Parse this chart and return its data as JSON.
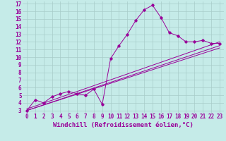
{
  "xlabel": "Windchill (Refroidissement éolien,°C)",
  "background_color": "#c5ebe8",
  "grid_color": "#a8ccc9",
  "line_color": "#990099",
  "xlim": [
    -0.5,
    23.5
  ],
  "ylim": [
    2.7,
    17.3
  ],
  "xticks": [
    0,
    1,
    2,
    3,
    4,
    5,
    6,
    7,
    8,
    9,
    10,
    11,
    12,
    13,
    14,
    15,
    16,
    17,
    18,
    19,
    20,
    21,
    22,
    23
  ],
  "yticks": [
    3,
    4,
    5,
    6,
    7,
    8,
    9,
    10,
    11,
    12,
    13,
    14,
    15,
    16,
    17
  ],
  "line1_x": [
    0,
    1,
    2,
    3,
    4,
    5,
    6,
    7,
    8,
    9,
    10,
    11,
    12,
    13,
    14,
    15,
    16,
    17,
    18,
    19,
    20,
    21,
    22,
    23
  ],
  "line1_y": [
    3.0,
    4.4,
    4.0,
    4.8,
    5.2,
    5.5,
    5.2,
    5.0,
    5.8,
    3.8,
    9.8,
    11.5,
    13.0,
    14.8,
    16.2,
    16.8,
    15.2,
    13.2,
    12.8,
    12.0,
    12.0,
    12.2,
    11.8,
    11.8
  ],
  "line2_x": [
    0,
    23
  ],
  "line2_y": [
    3.2,
    12.0
  ],
  "line3_x": [
    0,
    23
  ],
  "line3_y": [
    3.0,
    11.5
  ],
  "line4_x": [
    0,
    23
  ],
  "line4_y": [
    3.0,
    11.2
  ],
  "tick_fontsize": 5.5,
  "label_fontsize": 6.5
}
